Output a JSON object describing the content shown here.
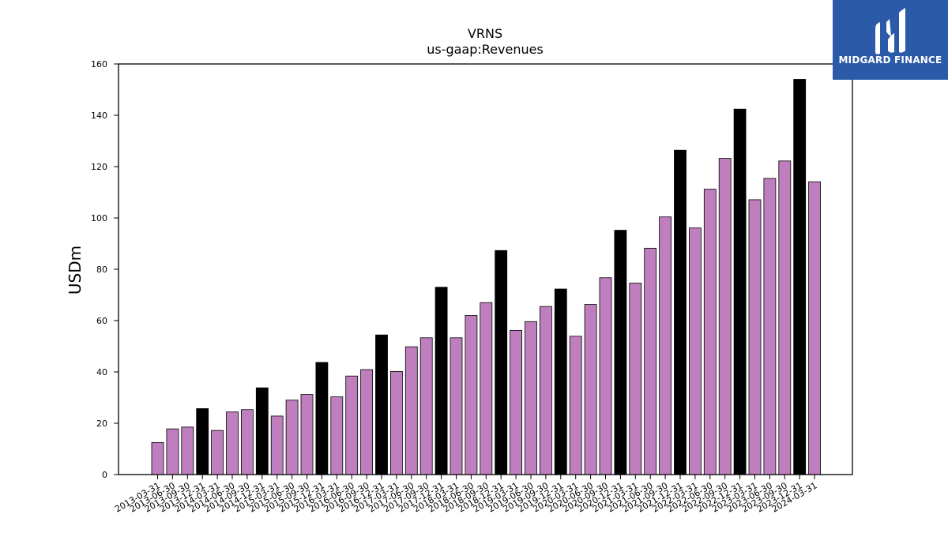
{
  "brand": {
    "name": "MIDGARD FINANCE",
    "color": "#2b5aa8"
  },
  "chart_data": {
    "type": "bar",
    "title": "VRNS",
    "subtitle": "us-gaap:Revenues",
    "xlabel": "",
    "ylabel": "USDm",
    "ylim": [
      0,
      160
    ],
    "yticks": [
      0,
      20,
      40,
      60,
      80,
      100,
      120,
      140,
      160
    ],
    "grid": false,
    "colors": {
      "quarter": "#bf7fbf",
      "q4": "#000000"
    },
    "categories": [
      "2013-03-31",
      "2013-06-30",
      "2013-09-30",
      "2013-12-31",
      "2014-03-31",
      "2014-06-30",
      "2014-09-30",
      "2014-12-31",
      "2015-03-31",
      "2015-06-30",
      "2015-09-30",
      "2015-12-31",
      "2016-03-31",
      "2016-06-30",
      "2016-09-30",
      "2016-12-31",
      "2017-03-31",
      "2017-06-30",
      "2017-09-30",
      "2017-12-31",
      "2018-03-31",
      "2018-06-30",
      "2018-09-30",
      "2018-12-31",
      "2019-03-31",
      "2019-06-30",
      "2019-09-30",
      "2019-12-31",
      "2020-03-31",
      "2020-06-30",
      "2020-09-30",
      "2020-12-31",
      "2021-03-31",
      "2021-06-30",
      "2021-09-30",
      "2021-12-31",
      "2022-03-31",
      "2022-06-30",
      "2022-09-30",
      "2022-12-31",
      "2023-03-31",
      "2023-06-30",
      "2023-09-30",
      "2023-12-31",
      "2024-03-31"
    ],
    "values": [
      12.5,
      17.8,
      18.5,
      25.7,
      17.2,
      24.4,
      25.3,
      33.8,
      22.8,
      29.0,
      31.2,
      43.7,
      30.3,
      38.4,
      40.9,
      54.4,
      40.2,
      49.8,
      53.3,
      73.0,
      53.3,
      62.0,
      67.0,
      87.3,
      56.2,
      59.6,
      65.5,
      72.3,
      53.9,
      66.3,
      76.7,
      95.2,
      74.6,
      88.2,
      100.4,
      126.4,
      96.1,
      111.2,
      123.2,
      142.4,
      107.1,
      115.4,
      122.2,
      154.0,
      114.1
    ]
  }
}
